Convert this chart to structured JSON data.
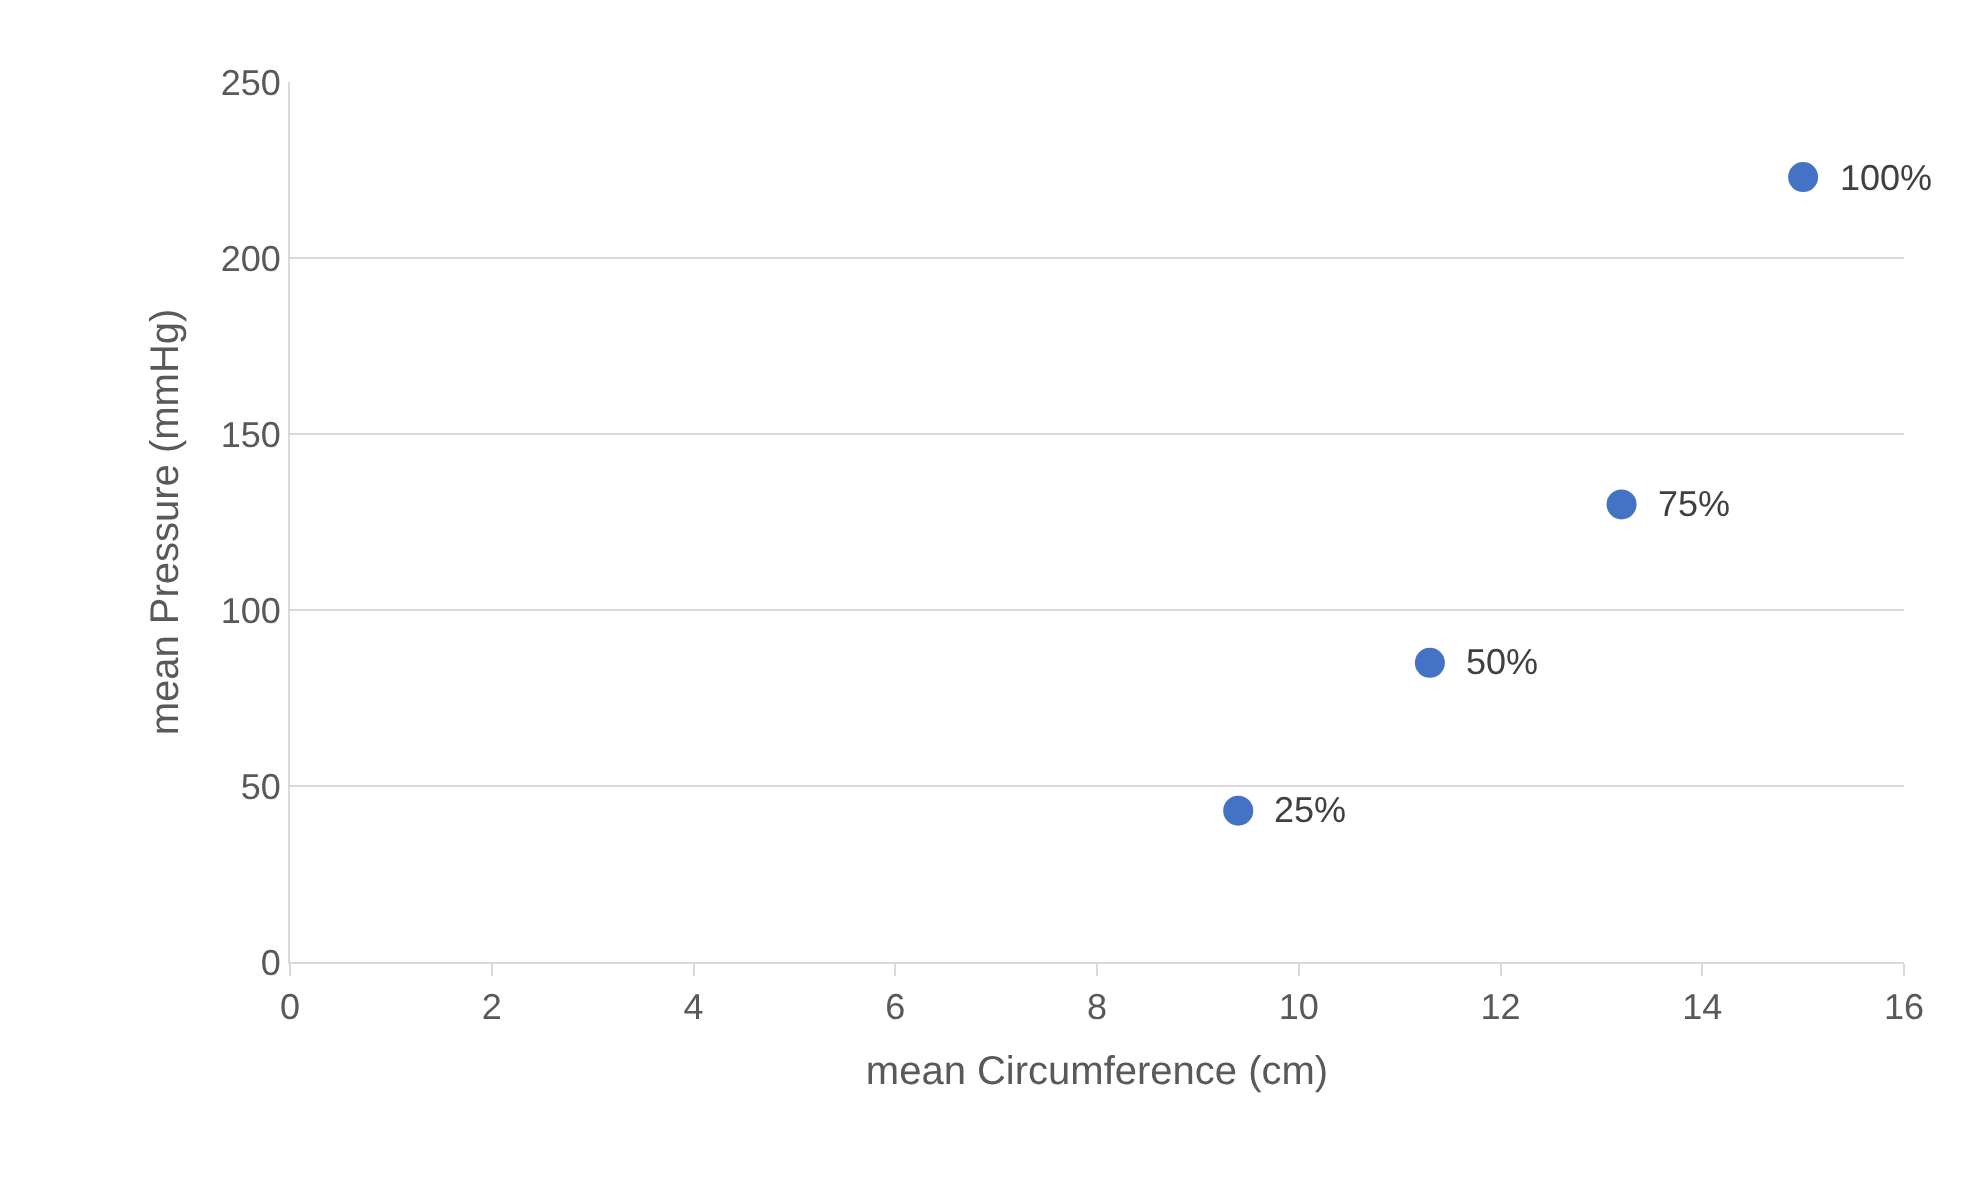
{
  "chart_data": {
    "type": "scatter",
    "xlabel": "mean Circumference (cm)",
    "ylabel": "mean Pressure (mmHg)",
    "x": [
      9.4,
      11.3,
      13.2,
      15.0
    ],
    "series": [
      {
        "color": "#4472c4",
        "values": [
          43,
          85,
          130,
          223
        ]
      }
    ],
    "annotations": [
      {
        "text": "25%",
        "x": 9.4,
        "y": 43
      },
      {
        "text": "50%",
        "x": 11.3,
        "y": 85
      },
      {
        "text": "75%",
        "x": 13.2,
        "y": 130
      },
      {
        "text": "100%",
        "x": 15.0,
        "y": 223
      }
    ],
    "xlim": [
      0,
      16
    ],
    "xticks": [
      0,
      2,
      4,
      6,
      8,
      10,
      12,
      14,
      16
    ],
    "ylim": [
      0,
      250
    ],
    "yticks": [
      0,
      50,
      100,
      150,
      200,
      250
    ],
    "grid": "y",
    "marker": "circle"
  }
}
